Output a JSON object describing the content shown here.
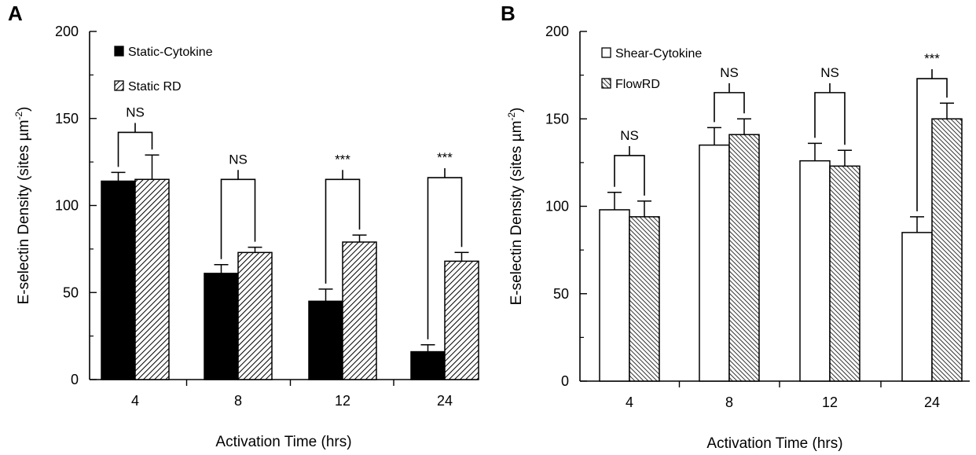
{
  "chart_data": [
    {
      "type": "bar",
      "panel_label": "A",
      "categories": [
        "4",
        "8",
        "12",
        "24"
      ],
      "xlabel": "Activation Time (hrs)",
      "ylabel": "E-selectin Density (sites µm",
      "ylabel_sup": "-2",
      "ylabel_close": ")",
      "ylim": [
        0,
        200
      ],
      "yticks": [
        "0",
        "50",
        "100",
        "150",
        "200"
      ],
      "legend_position": "top-left",
      "series": [
        {
          "name": "Static-Cytokine",
          "pattern": "solid-black",
          "values": [
            114,
            61,
            45,
            16
          ],
          "errors": [
            5,
            5,
            7,
            4
          ]
        },
        {
          "name": "Static RD",
          "pattern": "hatched",
          "values": [
            115,
            73,
            79,
            68
          ],
          "errors": [
            14,
            3,
            4,
            5
          ]
        }
      ],
      "significance": [
        {
          "label": "NS",
          "category": "4",
          "bracket_y": 142
        },
        {
          "label": "NS",
          "category": "8",
          "bracket_y": 115
        },
        {
          "label": "***",
          "category": "12",
          "bracket_y": 115
        },
        {
          "label": "***",
          "category": "24",
          "bracket_y": 116
        }
      ]
    },
    {
      "type": "bar",
      "panel_label": "B",
      "categories": [
        "4",
        "8",
        "12",
        "24"
      ],
      "xlabel": "Activation Time (hrs)",
      "ylabel": "E-selectin Density (sites µm",
      "ylabel_sup": "-2",
      "ylabel_close": ")",
      "ylim": [
        0,
        200
      ],
      "yticks": [
        "0",
        "50",
        "100",
        "150",
        "200"
      ],
      "legend_position": "top-left",
      "series": [
        {
          "name": "Shear-Cytokine",
          "pattern": "open-white",
          "values": [
            98,
            135,
            126,
            85
          ],
          "errors": [
            10,
            10,
            10,
            9
          ]
        },
        {
          "name": "FlowRD",
          "pattern": "hatched",
          "values": [
            94,
            141,
            123,
            150
          ],
          "errors": [
            9,
            9,
            9,
            9
          ]
        }
      ],
      "significance": [
        {
          "label": "NS",
          "category": "4",
          "bracket_y": 129
        },
        {
          "label": "NS",
          "category": "8",
          "bracket_y": 165
        },
        {
          "label": "NS",
          "category": "12",
          "bracket_y": 165
        },
        {
          "label": "***",
          "category": "24",
          "bracket_y": 173
        }
      ]
    }
  ]
}
